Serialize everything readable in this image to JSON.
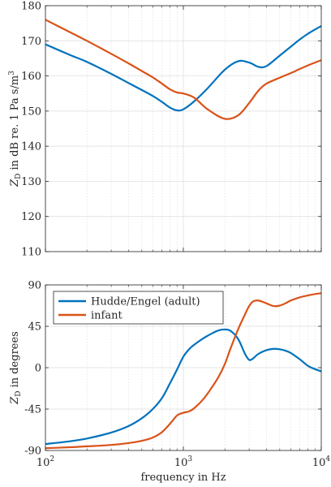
{
  "chart_data": [
    {
      "type": "line",
      "ylabel": "Z_D in dB re. 1 Pa s/m^3",
      "ylabel_parts": {
        "sym": "Z",
        "sub": "D",
        "mid": " in dB re. 1 Pa s/m",
        "sup": "3"
      },
      "xscale": "log",
      "xlim": [
        100,
        10000
      ],
      "ylim": [
        110,
        180
      ],
      "yticks": [
        110,
        120,
        130,
        140,
        150,
        160,
        170,
        180
      ],
      "ytick_labels": [
        "110",
        "120",
        "130",
        "140",
        "150",
        "160",
        "170",
        "180"
      ],
      "grid": true,
      "series": [
        {
          "color": "#0072BD",
          "x": [
            100,
            150,
            200,
            300,
            400,
            500,
            600,
            700,
            800,
            900,
            1000,
            1200,
            1500,
            2000,
            2500,
            3000,
            3500,
            4000,
            5000,
            6000,
            7000,
            8000,
            9000,
            10000
          ],
          "y": [
            169.0,
            166.0,
            164.0,
            160.6,
            158.0,
            156.0,
            154.3,
            152.6,
            151.0,
            150.2,
            150.5,
            152.8,
            156.5,
            161.8,
            164.2,
            163.8,
            162.6,
            162.8,
            165.8,
            168.3,
            170.4,
            172.0,
            173.2,
            174.2
          ]
        },
        {
          "color": "#D95319",
          "x": [
            100,
            150,
            200,
            300,
            400,
            500,
            600,
            700,
            800,
            900,
            1000,
            1200,
            1500,
            2000,
            2500,
            3000,
            3500,
            4000,
            5000,
            6000,
            7000,
            8000,
            9000,
            10000
          ],
          "y": [
            176.0,
            172.5,
            170.0,
            166.3,
            163.6,
            161.4,
            159.6,
            157.8,
            156.2,
            155.3,
            155.0,
            153.8,
            150.5,
            147.8,
            148.8,
            152.3,
            155.8,
            157.8,
            159.5,
            160.8,
            162.0,
            163.0,
            163.8,
            164.5
          ]
        }
      ]
    },
    {
      "type": "line",
      "xlabel": "frequency in Hz",
      "ylabel": "Z_D in degrees",
      "ylabel_parts": {
        "sym": "Z",
        "sub": "D",
        "mid": " in degrees"
      },
      "xscale": "log",
      "xlim": [
        100,
        10000
      ],
      "xticks": [
        100,
        1000,
        10000
      ],
      "xtick_labels": [
        {
          "base": "10",
          "exp": "2"
        },
        {
          "base": "10",
          "exp": "3"
        },
        {
          "base": "10",
          "exp": "4"
        }
      ],
      "ylim": [
        -90,
        90
      ],
      "yticks": [
        -90,
        -45,
        0,
        45,
        90
      ],
      "ytick_labels": [
        "-90",
        "-45",
        "0",
        "45",
        "90"
      ],
      "grid": true,
      "legend_position": "top-left",
      "series": [
        {
          "name": "Hudde/Engel (adult)",
          "color": "#0072BD",
          "x": [
            100,
            150,
            200,
            300,
            400,
            500,
            600,
            700,
            800,
            900,
            1000,
            1100,
            1200,
            1400,
            1600,
            1800,
            2000,
            2200,
            2500,
            2800,
            3000,
            3200,
            3500,
            4000,
            4500,
            5000,
            5500,
            6000,
            7000,
            8000,
            9000,
            10000
          ],
          "y": [
            -83.0,
            -80.0,
            -77.0,
            -70.5,
            -63.5,
            -55.0,
            -45.0,
            -33.0,
            -17.0,
            -2.0,
            12.0,
            20.0,
            25.0,
            32.0,
            37.0,
            40.5,
            41.5,
            40.0,
            31.0,
            15.0,
            8.5,
            10.0,
            15.0,
            19.0,
            20.5,
            20.0,
            18.5,
            16.0,
            9.0,
            2.0,
            -1.5,
            -4.0
          ]
        },
        {
          "name": "infant",
          "color": "#D95319",
          "x": [
            100,
            150,
            200,
            300,
            400,
            500,
            600,
            700,
            800,
            900,
            1000,
            1100,
            1200,
            1400,
            1600,
            1800,
            2000,
            2200,
            2500,
            2800,
            3000,
            3200,
            3500,
            4000,
            4500,
            5000,
            5500,
            6000,
            7000,
            8000,
            9000,
            10000
          ],
          "y": [
            -87.5,
            -86.5,
            -85.5,
            -84.0,
            -82.0,
            -79.5,
            -76.0,
            -70.0,
            -61.0,
            -52.0,
            -49.0,
            -47.5,
            -44.0,
            -34.0,
            -22.0,
            -10.0,
            4.0,
            21.0,
            42.0,
            58.0,
            67.0,
            72.0,
            73.0,
            70.0,
            67.0,
            67.5,
            70.0,
            73.0,
            76.5,
            78.5,
            80.0,
            81.0
          ]
        }
      ]
    }
  ]
}
